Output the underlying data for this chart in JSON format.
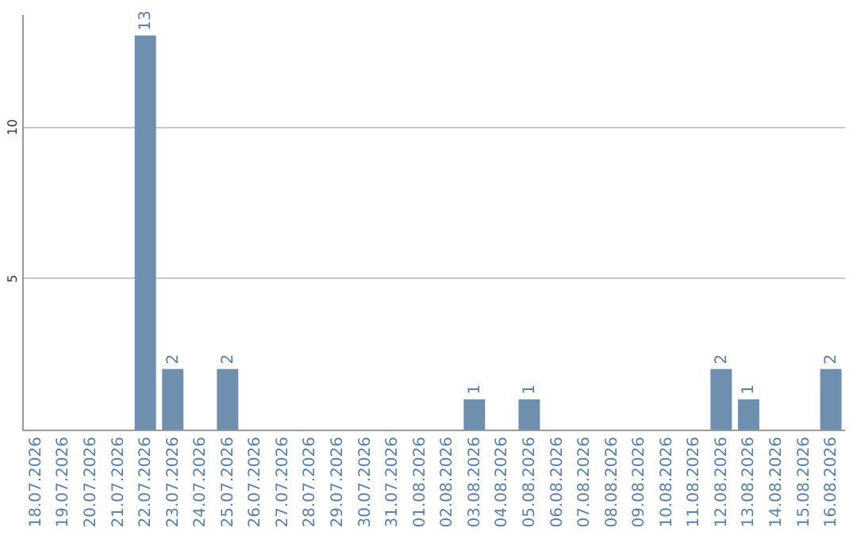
{
  "chart_data": {
    "type": "bar",
    "categories": [
      "18.07.2026",
      "19.07.2026",
      "20.07.2026",
      "21.07.2026",
      "22.07.2026",
      "23.07.2026",
      "24.07.2026",
      "25.07.2026",
      "26.07.2026",
      "27.07.2026",
      "28.07.2026",
      "29.07.2026",
      "30.07.2026",
      "31.07.2026",
      "01.08.2026",
      "02.08.2026",
      "03.08.2026",
      "04.08.2026",
      "05.08.2026",
      "06.08.2026",
      "07.08.2026",
      "08.08.2026",
      "09.08.2026",
      "10.08.2026",
      "11.08.2026",
      "12.08.2026",
      "13.08.2026",
      "14.08.2026",
      "15.08.2026",
      "16.08.2026"
    ],
    "values": [
      0,
      0,
      0,
      0,
      13,
      2,
      0,
      2,
      0,
      0,
      0,
      0,
      0,
      0,
      0,
      0,
      1,
      0,
      1,
      0,
      0,
      0,
      0,
      0,
      0,
      2,
      1,
      0,
      0,
      2
    ],
    "value_labels": [
      null,
      null,
      null,
      null,
      "13",
      "2",
      null,
      "2",
      null,
      null,
      null,
      null,
      null,
      null,
      null,
      null,
      "1",
      null,
      "1",
      null,
      null,
      null,
      null,
      null,
      null,
      "2",
      "1",
      null,
      null,
      "2"
    ],
    "color": "#6f8fae",
    "ylim": [
      0,
      13.7
    ],
    "yticks": [
      5,
      10
    ],
    "grid": "y"
  }
}
